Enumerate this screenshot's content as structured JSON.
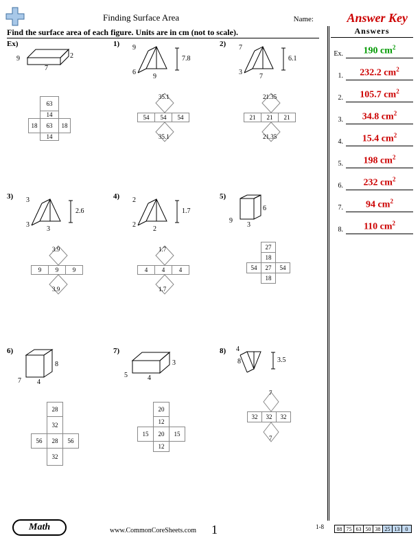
{
  "title": "Finding Surface Area",
  "name_label": "Name:",
  "answer_key": "Answer Key",
  "instruction": "Find the surface area of each figure. Units are in cm (not to scale).",
  "answers_title": "Answers",
  "answers": [
    {
      "num": "Ex.",
      "val": "190 cm²",
      "color": "#009900"
    },
    {
      "num": "1.",
      "val": "232.2 cm²"
    },
    {
      "num": "2.",
      "val": "105.7 cm²"
    },
    {
      "num": "3.",
      "val": "34.8 cm²"
    },
    {
      "num": "4.",
      "val": "15.4 cm²"
    },
    {
      "num": "5.",
      "val": "198 cm²"
    },
    {
      "num": "6.",
      "val": "232 cm²"
    },
    {
      "num": "7.",
      "val": "94 cm²"
    },
    {
      "num": "8.",
      "val": "110 cm²"
    }
  ],
  "footer_badge": "Math",
  "site": "www.CommonCoreSheets.com",
  "page_num": "1",
  "scale_label": "1-8",
  "scale": [
    {
      "v": "88"
    },
    {
      "v": "75"
    },
    {
      "v": "63"
    },
    {
      "v": "50"
    },
    {
      "v": "38"
    },
    {
      "v": "25",
      "bg": "#c3daf1"
    },
    {
      "v": "13",
      "bg": "#c3daf1"
    },
    {
      "v": "0",
      "bg": "#c3daf1"
    }
  ],
  "p": {
    "ex": {
      "label": "Ex)",
      "d": {
        "a": "9",
        "b": "7",
        "c": "2"
      },
      "net": [
        "63",
        "14",
        "18",
        "63",
        "18",
        "14"
      ]
    },
    "p1": {
      "label": "1)",
      "d": {
        "a": "9",
        "b": "6",
        "c": "9",
        "h": "7.8"
      },
      "net": [
        "35.1",
        "54",
        "54",
        "54",
        "35.1"
      ]
    },
    "p2": {
      "label": "2)",
      "d": {
        "a": "7",
        "b": "3",
        "c": "7",
        "h": "6.1"
      },
      "net": [
        "21.35",
        "21",
        "21",
        "21",
        "21.35"
      ]
    },
    "p3": {
      "label": "3)",
      "d": {
        "a": "3",
        "b": "3",
        "c": "3",
        "h": "2.6"
      },
      "net": [
        "3.9",
        "9",
        "9",
        "9",
        "3.9"
      ]
    },
    "p4": {
      "label": "4)",
      "d": {
        "a": "2",
        "b": "2",
        "c": "2",
        "h": "1.7"
      },
      "net": [
        "1.7",
        "4",
        "4",
        "4",
        "1.7"
      ]
    },
    "p5": {
      "label": "5)",
      "d": {
        "a": "9",
        "b": "3",
        "c": "6"
      },
      "net": [
        "27",
        "18",
        "54",
        "27",
        "54",
        "18"
      ]
    },
    "p6": {
      "label": "6)",
      "d": {
        "a": "7",
        "b": "4",
        "c": "8"
      },
      "net": [
        "28",
        "32",
        "56",
        "28",
        "56",
        "32"
      ]
    },
    "p7": {
      "label": "7)",
      "d": {
        "a": "5",
        "b": "4",
        "c": "3"
      },
      "net": [
        "20",
        "12",
        "15",
        "20",
        "15",
        "12"
      ]
    },
    "p8": {
      "label": "8)",
      "d": {
        "a": "4",
        "b": "8",
        "h": "3.5"
      },
      "net": [
        "7",
        "32",
        "32",
        "32",
        "7"
      ]
    }
  },
  "colors": {
    "line": "#000000",
    "netline": "#888888",
    "answer_red": "#cc0000"
  }
}
